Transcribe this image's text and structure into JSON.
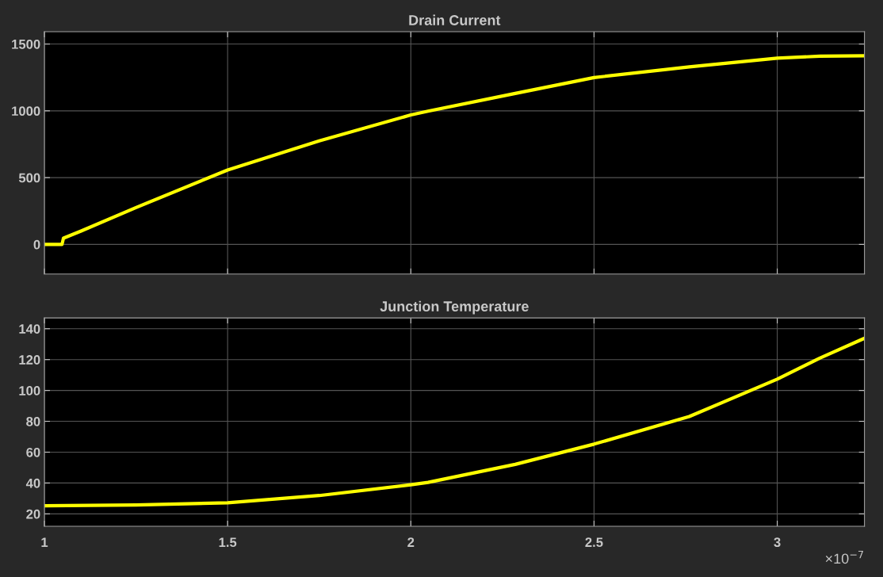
{
  "chart_data": [
    {
      "type": "line",
      "title": "Drain Current",
      "x": [
        1.0,
        1.048,
        1.052,
        1.1,
        1.25,
        1.5,
        1.75,
        2.0,
        2.047,
        2.285,
        2.5,
        2.76,
        3.0,
        3.116,
        3.238
      ],
      "series": [
        {
          "color": "#ffff00",
          "values": [
            0,
            0,
            47,
            100,
            276,
            557,
            775,
            969,
            998,
            1130,
            1249,
            1329,
            1394,
            1409,
            1412
          ]
        }
      ],
      "xlim": [
        1,
        3.238
      ],
      "xticks": [
        1,
        1.5,
        2,
        2.5,
        3
      ],
      "ylim": [
        -222,
        1592
      ],
      "yticks": [
        0,
        500,
        1000,
        1500
      ],
      "grid": true,
      "tick_labels": "y"
    },
    {
      "type": "line",
      "title": "Junction Temperature",
      "x": [
        1.0,
        1.25,
        1.5,
        1.75,
        2.0,
        2.047,
        2.285,
        2.5,
        2.76,
        3.0,
        3.116,
        3.238
      ],
      "series": [
        {
          "color": "#ffff00",
          "values": [
            25.3,
            25.8,
            27.2,
            31.9,
            38.9,
            40.4,
            52.1,
            65.2,
            83.1,
            107.3,
            120.9,
            133.8
          ]
        }
      ],
      "xlim": [
        1,
        3.238
      ],
      "xticks": [
        1,
        1.5,
        2,
        2.5,
        3
      ],
      "ylim": [
        12,
        147
      ],
      "yticks": [
        20,
        40,
        60,
        80,
        100,
        120,
        140
      ],
      "grid": true,
      "annotations": [
        "×10$^{−7}$"
      ]
    }
  ]
}
